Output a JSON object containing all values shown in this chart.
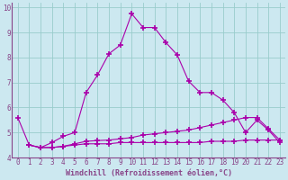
{
  "xlabel": "Windchill (Refroidissement éolien,°C)",
  "background_color": "#cce8f0",
  "grid_color": "#99cccc",
  "line_color": "#aa00aa",
  "spine_color": "#884488",
  "tick_color": "#884488",
  "xlim_min": -0.5,
  "xlim_max": 23.5,
  "ylim_min": 4.0,
  "ylim_max": 10.2,
  "xticks": [
    0,
    1,
    2,
    3,
    4,
    5,
    6,
    7,
    8,
    9,
    10,
    11,
    12,
    13,
    14,
    15,
    16,
    17,
    18,
    19,
    20,
    21,
    22,
    23
  ],
  "yticks": [
    4,
    5,
    6,
    7,
    8,
    9,
    10
  ],
  "line1_x": [
    0,
    1,
    2,
    3,
    4,
    5,
    6,
    7,
    8,
    9,
    10,
    11,
    12,
    13,
    14,
    15,
    16,
    17,
    18,
    19,
    20,
    21,
    22,
    23
  ],
  "line1_y": [
    5.6,
    4.5,
    4.4,
    4.6,
    4.85,
    5.0,
    6.6,
    7.3,
    8.15,
    8.5,
    9.75,
    9.2,
    9.2,
    8.6,
    8.1,
    7.05,
    6.6,
    6.6,
    6.3,
    5.8,
    5.0,
    5.5,
    5.1,
    4.6
  ],
  "line2_x": [
    1,
    2,
    3,
    4,
    5,
    6,
    7,
    8,
    9,
    10,
    11,
    12,
    13,
    14,
    15,
    16,
    17,
    18,
    19,
    20,
    21,
    22,
    23
  ],
  "line2_y": [
    4.5,
    4.4,
    4.4,
    4.45,
    4.5,
    4.55,
    4.55,
    4.55,
    4.6,
    4.6,
    4.6,
    4.6,
    4.6,
    4.6,
    4.6,
    4.6,
    4.65,
    4.65,
    4.65,
    4.7,
    4.7,
    4.7,
    4.7
  ],
  "line3_x": [
    1,
    2,
    3,
    4,
    5,
    6,
    7,
    8,
    9,
    10,
    11,
    12,
    13,
    14,
    15,
    16,
    17,
    18,
    19,
    20,
    21,
    22,
    23
  ],
  "line3_y": [
    4.5,
    4.4,
    4.4,
    4.45,
    4.55,
    4.65,
    4.68,
    4.7,
    4.75,
    4.8,
    4.9,
    4.95,
    5.0,
    5.05,
    5.1,
    5.2,
    5.3,
    5.4,
    5.5,
    5.6,
    5.6,
    5.15,
    4.7
  ],
  "xlabel_fontsize": 6.0,
  "tick_fontsize": 5.5
}
